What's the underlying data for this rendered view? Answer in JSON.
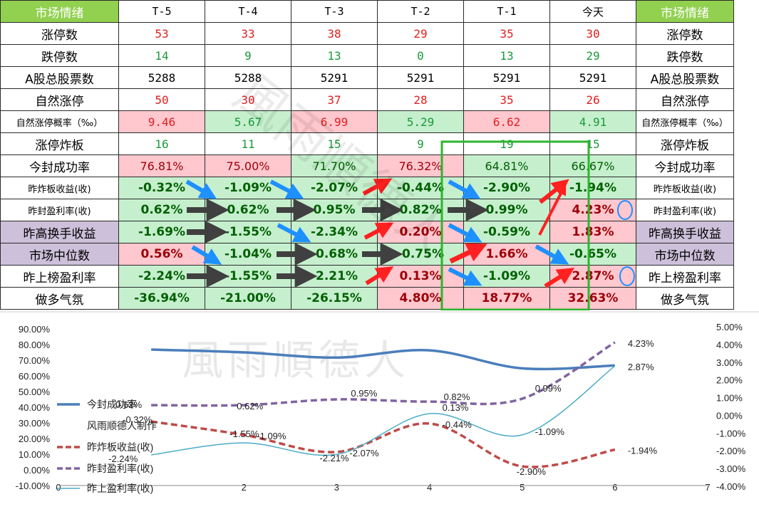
{
  "table": {
    "header": [
      "市场情绪",
      "T-5",
      "T-4",
      "T-3",
      "T-2",
      "T-1",
      "今天",
      "市场情绪"
    ],
    "rows": [
      {
        "label": "涨停数",
        "values": [
          "53",
          "33",
          "38",
          "29",
          "35",
          "30"
        ],
        "style": "int-red"
      },
      {
        "label": "跌停数",
        "values": [
          "14",
          "9",
          "13",
          "0",
          "13",
          "29"
        ],
        "style": "int-green"
      },
      {
        "label": "A股总股票数",
        "values": [
          "5288",
          "5288",
          "5291",
          "5291",
          "5291",
          "5291"
        ],
        "style": "int-black"
      },
      {
        "label": "自然涨停",
        "values": [
          "50",
          "30",
          "37",
          "28",
          "35",
          "26"
        ],
        "style": "int-red"
      },
      {
        "label": "自然涨停概率（‰）",
        "values": [
          "9.46",
          "5.67",
          "6.99",
          "5.29",
          "6.62",
          "4.91"
        ],
        "style": "dec",
        "bg": [
          "pk",
          "gn",
          "pk",
          "gn",
          "pk",
          "gn"
        ],
        "color": [
          "red",
          "grn",
          "red",
          "grn",
          "red",
          "grn"
        ]
      },
      {
        "label": "涨停炸板",
        "values": [
          "16",
          "11",
          "15",
          "9",
          "19",
          "15"
        ],
        "style": "int-green"
      },
      {
        "label": "今封成功率",
        "values": [
          "76.81%",
          "75.00%",
          "71.70%",
          "76.32%",
          "64.81%",
          "66.67%"
        ],
        "style": "pct",
        "bg": [
          "pk",
          "pk",
          "gn",
          "pk",
          "gn",
          "gn"
        ],
        "color": [
          "bred",
          "bred",
          "bgrn",
          "bred",
          "bgrn",
          "bgrn"
        ]
      },
      {
        "label": "昨炸板收益(收)",
        "values": [
          "-0.32%",
          "-1.09%",
          "-2.07%",
          "-0.44%",
          "-2.90%",
          "-1.94%"
        ],
        "style": "pct-bold",
        "bg": [
          "gn",
          "gn",
          "gn",
          "gn",
          "gn",
          "gn"
        ],
        "color": [
          "bgrn",
          "bgrn",
          "bgrn",
          "bgrn",
          "bgrn",
          "bgrn"
        ]
      },
      {
        "label": "昨封盈利率(收)",
        "values": [
          "0.62%",
          "0.62%",
          "0.95%",
          "0.82%",
          "0.99%",
          "4.23%"
        ],
        "style": "pct-bold",
        "bg": [
          "gn",
          "gn",
          "gn",
          "gn",
          "gn",
          "pk"
        ],
        "color": [
          "bgrn",
          "bgrn",
          "bgrn",
          "bgrn",
          "bgrn",
          "bred"
        ]
      },
      {
        "label": "昨高换手收益",
        "values": [
          "-1.69%",
          "-1.55%",
          "-2.34%",
          "0.20%",
          "-0.59%",
          "1.83%"
        ],
        "style": "pct-bold",
        "labelbg": "lav",
        "bg": [
          "gn",
          "gn",
          "gn",
          "pk",
          "gn",
          "pk"
        ],
        "color": [
          "bgrn",
          "bgrn",
          "bgrn",
          "bred",
          "bgrn",
          "bred"
        ]
      },
      {
        "label": "市场中位数",
        "values": [
          "0.56%",
          "-1.04%",
          "-0.68%",
          "-0.75%",
          "1.66%",
          "-0.65%"
        ],
        "style": "pct-bold",
        "labelbg": "lav",
        "bg": [
          "pk",
          "gn",
          "gn",
          "gn",
          "pk",
          "gn"
        ],
        "color": [
          "bred",
          "bgrn",
          "bgrn",
          "bgrn",
          "bred",
          "bgrn"
        ]
      },
      {
        "label": "昨上榜盈利率",
        "values": [
          "-2.24%",
          "-1.55%",
          "-2.21%",
          "0.13%",
          "-1.09%",
          "2.87%"
        ],
        "style": "pct-bold",
        "bg": [
          "gn",
          "gn",
          "gn",
          "pk",
          "gn",
          "pk"
        ],
        "color": [
          "bgrn",
          "bgrn",
          "bgrn",
          "bred",
          "bgrn",
          "bred"
        ]
      },
      {
        "label": "做多气氛",
        "values": [
          "-36.94%",
          "-21.00%",
          "-26.15%",
          "4.80%",
          "18.77%",
          "32.63%"
        ],
        "style": "pct-bold",
        "bg": [
          "gn",
          "gn",
          "gn",
          "pk",
          "pk",
          "pk"
        ],
        "color": [
          "bgrn",
          "bgrn",
          "bgrn",
          "bred",
          "bred",
          "bred"
        ]
      }
    ]
  },
  "watermark": "風雨順德人",
  "chart_data": {
    "type": "line",
    "x": [
      1,
      2,
      3,
      4,
      5,
      6
    ],
    "xlim": [
      0,
      7
    ],
    "x_ticks": [
      "0",
      "2",
      "3",
      "4",
      "5",
      "6",
      "7"
    ],
    "ylim_left": [
      -0.1,
      0.9
    ],
    "y_ticks_left": [
      "90.00%",
      "80.00%",
      "70.00%",
      "60.00%",
      "50.00%",
      "40.00%",
      "30.00%",
      "20.00%",
      "10.00%",
      "0.00%",
      "-10.00%"
    ],
    "ylim_right": [
      -0.04,
      0.05
    ],
    "y_ticks_right": [
      "5.00%",
      "4.00%",
      "3.00%",
      "2.00%",
      "1.00%",
      "0.00%",
      "-1.00%",
      "-2.00%",
      "-3.00%",
      "-4.00%"
    ],
    "credit": "风雨顺德人制作",
    "series": [
      {
        "name": "今封成功率",
        "axis": "left",
        "values": [
          0.7681,
          0.75,
          0.717,
          0.7632,
          0.6481,
          0.6667
        ],
        "color": "#4a7ebb",
        "dash": "solid",
        "width": 3.5,
        "labels": []
      },
      {
        "name": "昨炸板收益(收)",
        "axis": "right",
        "values": [
          -0.0032,
          -0.0109,
          -0.0207,
          -0.0044,
          -0.029,
          -0.0194
        ],
        "color": "#be4b48",
        "dash": "dashed",
        "width": 3.5,
        "labels": [
          "-0.32%",
          "-1.09%",
          "-2.07%",
          "-0.44%",
          "-2.90%",
          "-1.94%"
        ]
      },
      {
        "name": "昨封盈利率(收)",
        "axis": "right",
        "values": [
          0.0062,
          0.0062,
          0.0095,
          0.0082,
          0.0099,
          0.0423
        ],
        "color": "#8064a2",
        "dash": "dashed",
        "width": 3.5,
        "labels": [
          "0.62%",
          "0.62%",
          "0.95%",
          "0.82%",
          "0.99%",
          "4.23%"
        ]
      },
      {
        "name": "昨上盈利率(收)",
        "axis": "right",
        "values": [
          -0.0224,
          -0.0155,
          -0.0221,
          0.0013,
          -0.0109,
          0.0287
        ],
        "color": "#4bacc6",
        "dash": "solid",
        "width": 1.5,
        "labels": [
          "-2.24%",
          "-1.55%",
          "-2.21%",
          "0.13%",
          "-1.09%",
          "2.87%"
        ]
      }
    ]
  }
}
